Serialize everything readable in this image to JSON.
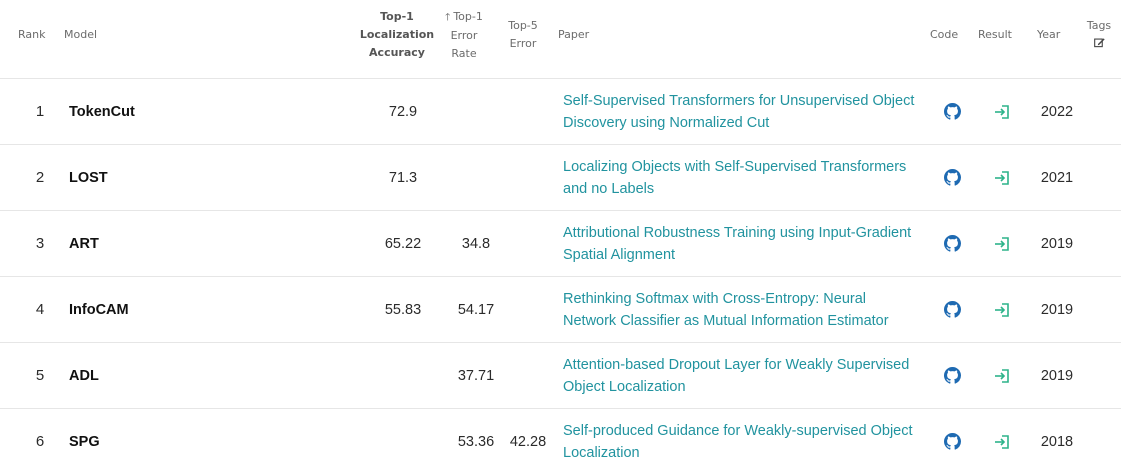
{
  "colors": {
    "link": "#21939f",
    "github_icon": "#1e6ab2",
    "result_icon": "#2db38a",
    "border": "#e6e6e6",
    "header_text": "#6b6b6b"
  },
  "header": {
    "rank": "Rank",
    "model": "Model",
    "top1_loc_acc_line1": "Top-1",
    "top1_loc_acc_line2": "Localization",
    "top1_loc_acc_line3": "Accuracy",
    "top1_err_line1": "Top-1",
    "top1_err_line2": "Error",
    "top1_err_line3": "Rate",
    "top5_err_line1": "Top-5",
    "top5_err_line2": "Error",
    "paper": "Paper",
    "code": "Code",
    "result": "Result",
    "year": "Year",
    "tags": "Tags",
    "sort_icon": "arrow-up-icon",
    "tags_icon": "edit-icon"
  },
  "rows": [
    {
      "rank": "1",
      "model": "TokenCut",
      "top1_loc_acc": "72.9",
      "top1_err": "",
      "top5_err": "",
      "paper": "Self-Supervised Transformers for Unsupervised Object Discovery using Normalized Cut",
      "code_icon": "github-icon",
      "result_icon": "result-arrow-icon",
      "year": "2022"
    },
    {
      "rank": "2",
      "model": "LOST",
      "top1_loc_acc": "71.3",
      "top1_err": "",
      "top5_err": "",
      "paper": "Localizing Objects with Self-Supervised Transformers and no Labels",
      "code_icon": "github-icon",
      "result_icon": "result-arrow-icon",
      "year": "2021"
    },
    {
      "rank": "3",
      "model": "ART",
      "top1_loc_acc": "65.22",
      "top1_err": "34.8",
      "top5_err": "",
      "paper": "Attributional Robustness Training using Input-Gradient Spatial Alignment",
      "code_icon": "github-icon",
      "result_icon": "result-arrow-icon",
      "year": "2019"
    },
    {
      "rank": "4",
      "model": "InfoCAM",
      "top1_loc_acc": "55.83",
      "top1_err": "54.17",
      "top5_err": "",
      "paper": "Rethinking Softmax with Cross-Entropy: Neural Network Classifier as Mutual Information Estimator",
      "code_icon": "github-icon",
      "result_icon": "result-arrow-icon",
      "year": "2019"
    },
    {
      "rank": "5",
      "model": "ADL",
      "top1_loc_acc": "",
      "top1_err": "37.71",
      "top5_err": "",
      "paper": "Attention-based Dropout Layer for Weakly Supervised Object Localization",
      "code_icon": "github-icon",
      "result_icon": "result-arrow-icon",
      "year": "2019"
    },
    {
      "rank": "6",
      "model": "SPG",
      "top1_loc_acc": "",
      "top1_err": "53.36",
      "top5_err": "42.28",
      "paper": "Self-produced Guidance for Weakly-supervised Object Localization",
      "code_icon": "github-icon",
      "result_icon": "result-arrow-icon",
      "year": "2018"
    }
  ]
}
